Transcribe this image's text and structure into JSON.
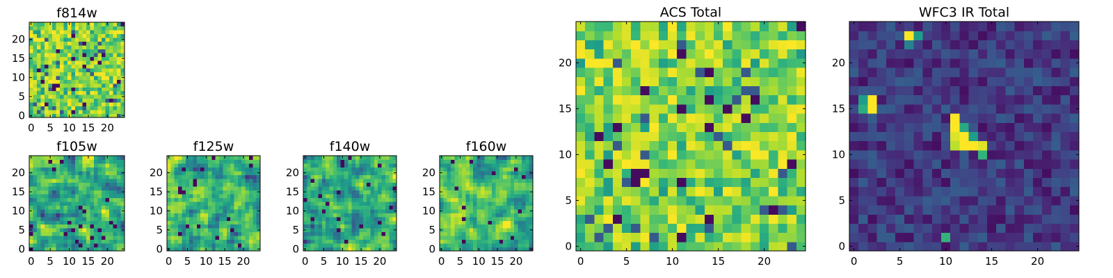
{
  "chart_data": [
    {
      "id": "f814w",
      "type": "heatmap",
      "title": "f814w",
      "grid_size": 25,
      "colormap": "viridis",
      "xticks": [
        0,
        5,
        10,
        15,
        20
      ],
      "yticks": [
        0,
        5,
        10,
        15,
        20
      ],
      "xlim": [
        -0.5,
        24.5
      ],
      "ylim": [
        -0.5,
        24.5
      ],
      "pattern": "noise",
      "seed": 11
    },
    {
      "id": "f105w",
      "type": "heatmap",
      "title": "f105w",
      "grid_size": 25,
      "colormap": "viridis",
      "xticks": [
        0,
        5,
        10,
        15,
        20
      ],
      "yticks": [
        0,
        5,
        10,
        15,
        20
      ],
      "xlim": [
        -0.5,
        24.5
      ],
      "ylim": [
        -0.5,
        24.5
      ],
      "pattern": "smooth",
      "seed": 23
    },
    {
      "id": "f125w",
      "type": "heatmap",
      "title": "f125w",
      "grid_size": 25,
      "colormap": "viridis",
      "xticks": [
        0,
        5,
        10,
        15,
        20
      ],
      "yticks": [
        0,
        5,
        10,
        15,
        20
      ],
      "xlim": [
        -0.5,
        24.5
      ],
      "ylim": [
        -0.5,
        24.5
      ],
      "pattern": "smooth",
      "seed": 37
    },
    {
      "id": "f140w",
      "type": "heatmap",
      "title": "f140w",
      "grid_size": 25,
      "colormap": "viridis",
      "xticks": [
        0,
        5,
        10,
        15,
        20
      ],
      "yticks": [
        0,
        5,
        10,
        15,
        20
      ],
      "xlim": [
        -0.5,
        24.5
      ],
      "ylim": [
        -0.5,
        24.5
      ],
      "pattern": "smooth",
      "seed": 41
    },
    {
      "id": "f160w",
      "type": "heatmap",
      "title": "f160w",
      "grid_size": 25,
      "colormap": "viridis",
      "xticks": [
        0,
        5,
        10,
        15,
        20
      ],
      "yticks": [
        0,
        5,
        10,
        15,
        20
      ],
      "xlim": [
        -0.5,
        24.5
      ],
      "ylim": [
        -0.5,
        24.5
      ],
      "pattern": "smooth",
      "seed": 53
    },
    {
      "id": "acs-total",
      "type": "heatmap",
      "title": "ACS Total",
      "grid_size": 25,
      "colormap": "viridis",
      "xticks": [
        0,
        5,
        10,
        15,
        20
      ],
      "yticks": [
        0,
        5,
        10,
        15,
        20
      ],
      "xlim": [
        -0.5,
        24.5
      ],
      "ylim": [
        -0.5,
        24.5
      ],
      "pattern": "noise",
      "seed": 11
    },
    {
      "id": "wfc3-ir-total",
      "type": "heatmap",
      "title": "WFC3 IR Total",
      "grid_size": 25,
      "colormap": "viridis",
      "xticks": [
        0,
        5,
        10,
        15,
        20
      ],
      "yticks": [
        0,
        5,
        10,
        15,
        20
      ],
      "xlim": [
        -0.5,
        24.5
      ],
      "ylim": [
        -0.5,
        24.5
      ],
      "pattern": "dark_noise",
      "seed": 71,
      "bright_cells": [
        {
          "x": 2,
          "y": 16,
          "value": 1.0
        },
        {
          "x": 2,
          "y": 15,
          "value": 1.0
        },
        {
          "x": 1,
          "y": 15,
          "value": 0.62
        },
        {
          "x": 1,
          "y": 16,
          "value": 0.55
        },
        {
          "x": 6,
          "y": 23,
          "value": 1.0
        },
        {
          "x": 7,
          "y": 23,
          "value": 0.55
        },
        {
          "x": 6,
          "y": 22,
          "value": 0.45
        },
        {
          "x": 11,
          "y": 14,
          "value": 1.0
        },
        {
          "x": 11,
          "y": 13,
          "value": 1.0
        },
        {
          "x": 11,
          "y": 12,
          "value": 0.95
        },
        {
          "x": 11,
          "y": 11,
          "value": 0.9
        },
        {
          "x": 12,
          "y": 13,
          "value": 0.6
        },
        {
          "x": 12,
          "y": 12,
          "value": 1.0
        },
        {
          "x": 12,
          "y": 11,
          "value": 1.0
        },
        {
          "x": 13,
          "y": 11,
          "value": 1.0
        },
        {
          "x": 14,
          "y": 11,
          "value": 0.95
        },
        {
          "x": 13,
          "y": 12,
          "value": 0.55
        },
        {
          "x": 14,
          "y": 10,
          "value": 0.65
        },
        {
          "x": 10,
          "y": 1,
          "value": 0.65
        }
      ]
    }
  ]
}
